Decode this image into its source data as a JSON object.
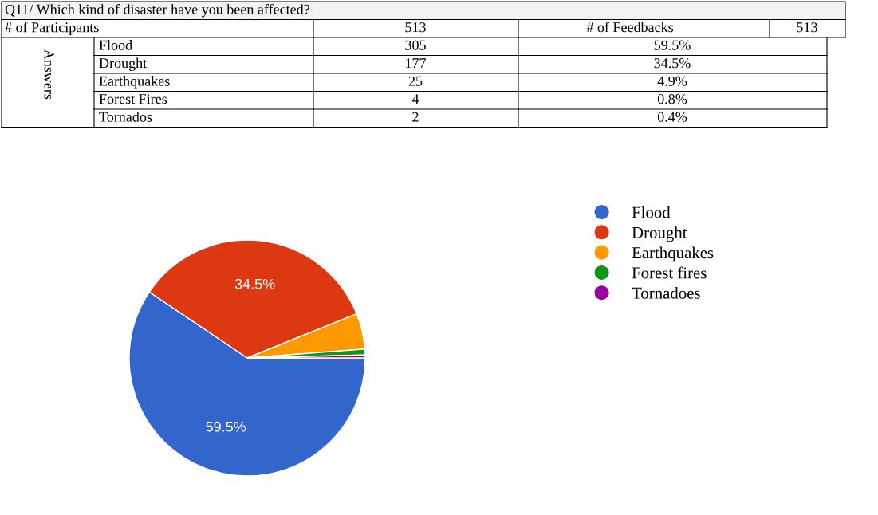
{
  "chart_data": [
    {
      "type": "other",
      "title": "Q11/ Which kind of disaster have you been affected?",
      "categories": [
        "Flood",
        "Drought",
        "Earthquakes",
        "Forest Fires",
        "Tornados"
      ],
      "values": [
        59.5,
        34.5,
        4.9,
        0.8,
        0.4
      ],
      "value_labels": [
        "59.5%",
        "34.5%",
        "4.9%",
        "0.8%",
        "0.4%"
      ],
      "annotations": [
        "# of Participants",
        "513",
        "# of Feedbacks",
        "513",
        "Answers",
        "305",
        "177",
        "25",
        "4",
        "2"
      ]
    },
    {
      "type": "pie",
      "categories": [
        "Flood",
        "Drought",
        "Earthquakes",
        "Forest fires",
        "Tornadoes"
      ],
      "values": [
        59.5,
        34.5,
        4.9,
        0.8,
        0.4
      ],
      "colors": [
        "#3366cc",
        "#dc3912",
        "#ff9900",
        "#109618",
        "#990099"
      ],
      "value_labels": [
        "59.5%",
        "34.5%",
        null,
        null,
        null
      ],
      "legend": "right"
    }
  ]
}
